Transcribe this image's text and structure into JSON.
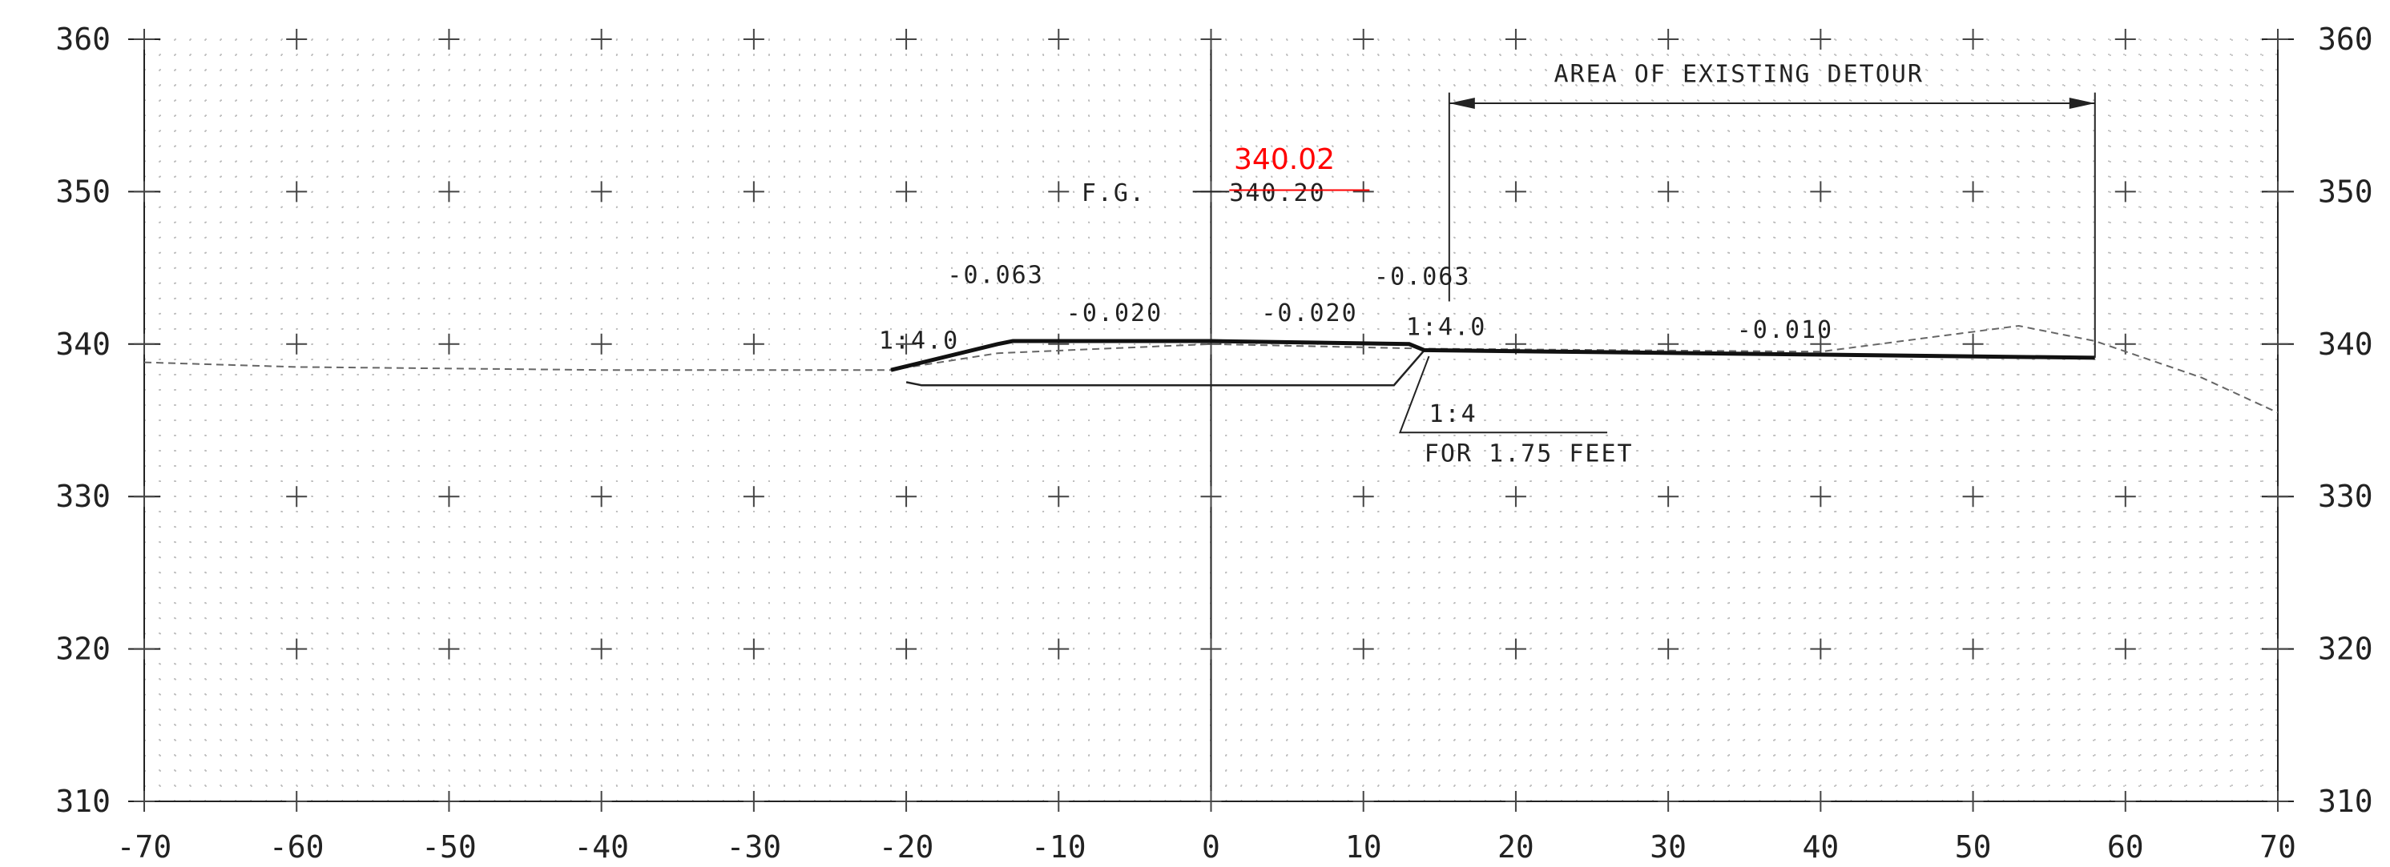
{
  "chart_data": {
    "type": "cross-section",
    "x_axis": {
      "range": [
        -70,
        70
      ],
      "ticks": [
        "-70",
        "-60",
        "-50",
        "-40",
        "-30",
        "-20",
        "-10",
        "0",
        "10",
        "20",
        "30",
        "40",
        "50",
        "60",
        "70"
      ]
    },
    "y_axis": {
      "range": [
        310,
        360
      ],
      "ticks": [
        "310",
        "320",
        "330",
        "340",
        "350",
        "360"
      ]
    },
    "grid": "dotted",
    "annotations": {
      "area_label": "AREA OF EXISTING DETOUR",
      "fg_label": "F.G.",
      "fg_value": "340.20",
      "fg_value_red": "340.02",
      "slope_left_outer": "-0.063",
      "slope_left_inner": "-0.020",
      "slope_right_inner": "-0.020",
      "slope_right_outer": "-0.063",
      "slope_far_right": "-0.010",
      "side_slope_left": "1:4.0",
      "side_slope_right": "1:4.0",
      "leader_ratio": "1:4",
      "leader_note": "FOR 1.75 FEET"
    },
    "profiles": {
      "proposed_top": [
        [
          -21,
          338.3
        ],
        [
          -14,
          340.0
        ],
        [
          -13,
          340.2
        ],
        [
          0,
          340.2
        ],
        [
          13,
          340.0
        ],
        [
          14,
          339.6
        ],
        [
          58,
          339.1
        ]
      ],
      "proposed_subgrade": [
        [
          -20,
          337.5
        ],
        [
          -19,
          337.3
        ],
        [
          12,
          337.3
        ],
        [
          14,
          339.6
        ]
      ],
      "existing_ground": [
        [
          -70,
          338.8
        ],
        [
          -60,
          338.5
        ],
        [
          -40,
          338.3
        ],
        [
          -21,
          338.3
        ],
        [
          -14,
          339.4
        ],
        [
          0,
          340.0
        ],
        [
          14,
          339.7
        ],
        [
          40,
          339.5
        ],
        [
          53,
          341.2
        ],
        [
          58,
          340.2
        ],
        [
          65,
          337.8
        ],
        [
          70,
          335.5
        ]
      ],
      "detour_extent": [
        15,
        58
      ]
    }
  }
}
